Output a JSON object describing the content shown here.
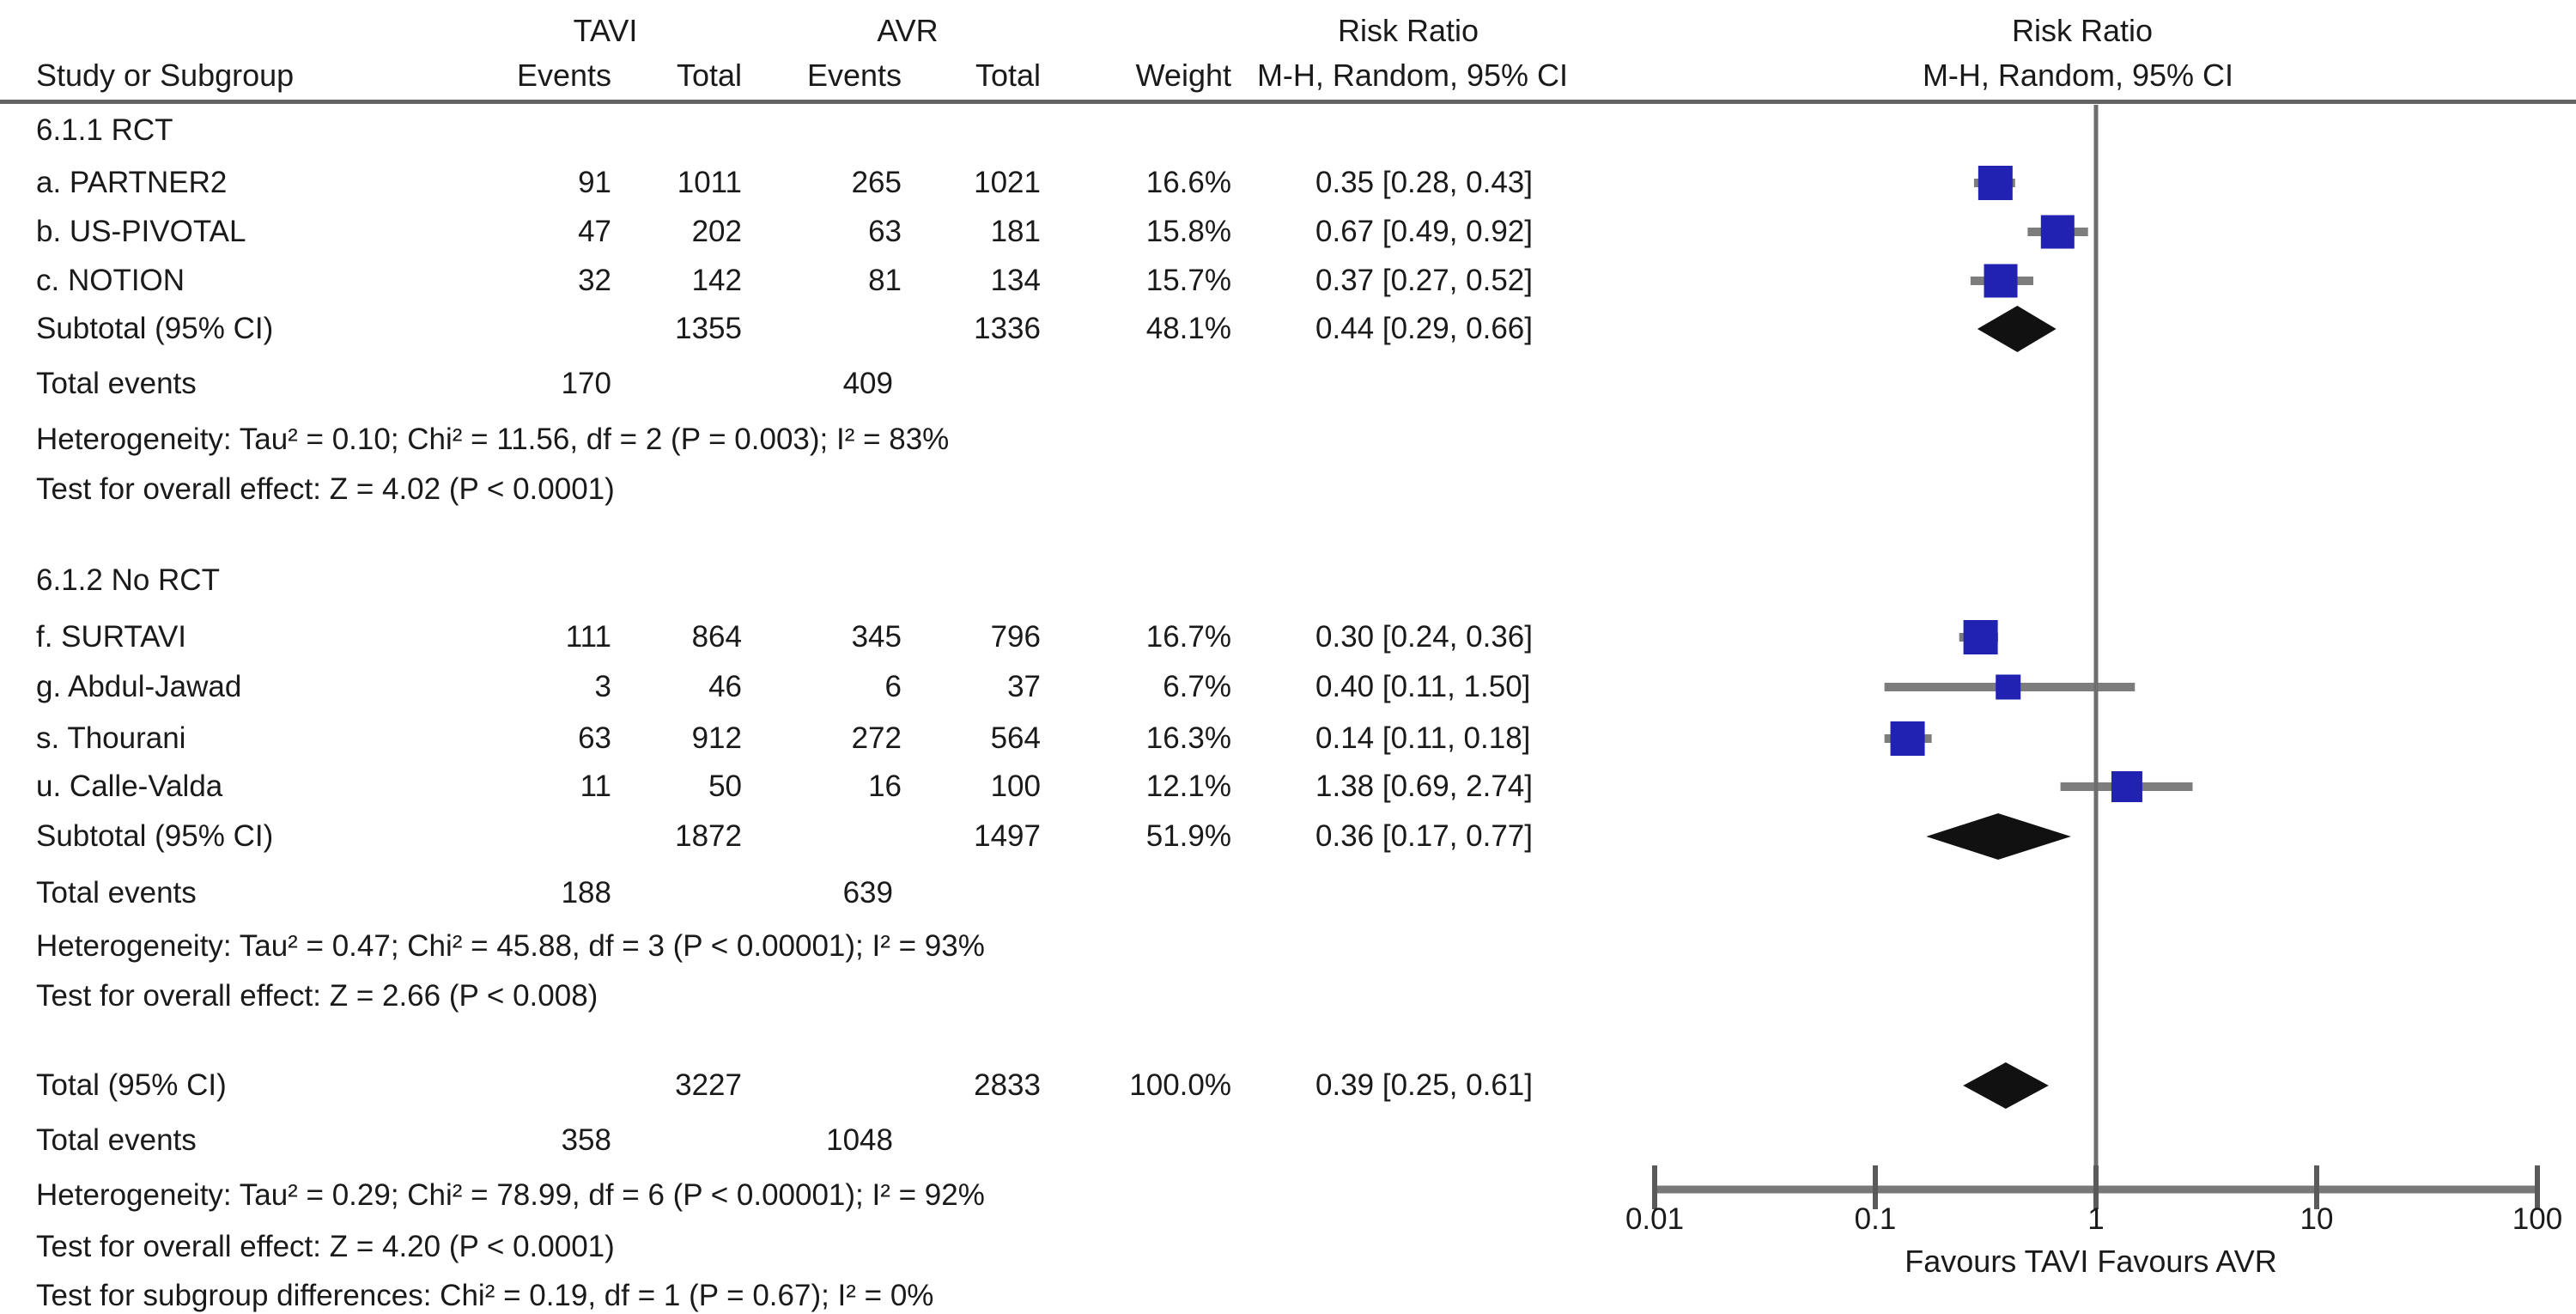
{
  "chart_data": {
    "type": "forest",
    "effect_measure": "Risk Ratio",
    "method": "M-H, Random, 95% CI",
    "group1": "TAVI",
    "group2": "AVR",
    "headers": {
      "study": "Study or Subgroup",
      "events": "Events",
      "total": "Total",
      "weight": "Weight"
    },
    "marker_colors": {
      "square": "#2222b2",
      "ci_line": "#7d7d7d",
      "diamond": "#111111",
      "axis": "#787878"
    },
    "subgroups": [
      {
        "name": "6.1.1 RCT",
        "studies": [
          {
            "label": "a. PARTNER2",
            "tavi_events": "91",
            "tavi_total": "1011",
            "avr_events": "265",
            "avr_total": "1021",
            "weight": "16.6%",
            "rr_text": "0.35 [0.28, 0.43]",
            "rr": 0.35,
            "ci_low": 0.28,
            "ci_high": 0.43
          },
          {
            "label": "b. US-PIVOTAL",
            "tavi_events": "47",
            "tavi_total": "202",
            "avr_events": "63",
            "avr_total": "181",
            "weight": "15.8%",
            "rr_text": "0.67 [0.49, 0.92]",
            "rr": 0.67,
            "ci_low": 0.49,
            "ci_high": 0.92
          },
          {
            "label": "c. NOTION",
            "tavi_events": "32",
            "tavi_total": "142",
            "avr_events": "81",
            "avr_total": "134",
            "weight": "15.7%",
            "rr_text": "0.37 [0.27, 0.52]",
            "rr": 0.37,
            "ci_low": 0.27,
            "ci_high": 0.52
          }
        ],
        "subtotal": {
          "label": "Subtotal (95% CI)",
          "tavi_total": "1355",
          "avr_total": "1336",
          "weight": "48.1%",
          "rr_text": "0.44 [0.29, 0.66]",
          "rr": 0.44,
          "ci_low": 0.29,
          "ci_high": 0.66
        },
        "total_events": {
          "label": "Total events",
          "tavi": "170",
          "avr": "409"
        },
        "heterogeneity": "Heterogeneity: Tau² = 0.10; Chi² = 11.56, df = 2 (P = 0.003); I² =  83%",
        "overall_effect": "Test for overall effect: Z = 4.02 (P < 0.0001)"
      },
      {
        "name": "6.1.2 No RCT",
        "studies": [
          {
            "label": "f. SURTAVI",
            "tavi_events": "111",
            "tavi_total": "864",
            "avr_events": "345",
            "avr_total": "796",
            "weight": "16.7%",
            "rr_text": "0.30 [0.24, 0.36]",
            "rr": 0.3,
            "ci_low": 0.24,
            "ci_high": 0.36
          },
          {
            "label": "g. Abdul-Jawad",
            "tavi_events": "3",
            "tavi_total": "46",
            "avr_events": "6",
            "avr_total": "37",
            "weight": "6.7%",
            "rr_text": "0.40 [0.11, 1.50]",
            "rr": 0.4,
            "ci_low": 0.11,
            "ci_high": 1.5
          },
          {
            "label": "s. Thourani",
            "tavi_events": "63",
            "tavi_total": "912",
            "avr_events": "272",
            "avr_total": "564",
            "weight": "16.3%",
            "rr_text": "0.14 [0.11, 0.18]",
            "rr": 0.14,
            "ci_low": 0.11,
            "ci_high": 0.18
          },
          {
            "label": "u. Calle-Valda",
            "tavi_events": "11",
            "tavi_total": "50",
            "avr_events": "16",
            "avr_total": "100",
            "weight": "12.1%",
            "rr_text": "1.38 [0.69, 2.74]",
            "rr": 1.38,
            "ci_low": 0.69,
            "ci_high": 2.74
          }
        ],
        "subtotal": {
          "label": "Subtotal (95% CI)",
          "tavi_total": "1872",
          "avr_total": "1497",
          "weight": "51.9%",
          "rr_text": "0.36 [0.17, 0.77]",
          "rr": 0.36,
          "ci_low": 0.17,
          "ci_high": 0.77
        },
        "total_events": {
          "label": "Total events",
          "tavi": "188",
          "avr": "639"
        },
        "heterogeneity": "Heterogeneity: Tau² = 0.47; Chi² = 45.88, df = 3 (P < 0.00001);  I² =  93%",
        "overall_effect": "Test for overall effect: Z = 2.66 (P < 0.008)"
      }
    ],
    "total": {
      "row": {
        "label": "Total (95% CI)",
        "tavi_total": "3227",
        "avr_total": "2833",
        "weight": "100.0%",
        "rr_text": "0.39 [0.25, 0.61]",
        "rr": 0.39,
        "ci_low": 0.25,
        "ci_high": 0.61
      },
      "total_events": {
        "label": "Total events",
        "tavi": "358",
        "avr": "1048"
      },
      "heterogeneity": "Heterogeneity: Tau² = 0.29; Chi² = 78.99, df = 6 (P < 0.00001);  I² =  92%",
      "overall_effect": "Test for overall effect: Z = 4.20 (P < 0.0001)",
      "subgroup_differences": "Test for subgroup differences: Chi² = 0.19, df = 1 (P = 0.67);  I² =  0%"
    },
    "x_axis": {
      "scale": "log",
      "ticks": [
        0.01,
        0.1,
        1,
        10,
        100
      ],
      "tick_labels": [
        "0.01",
        "0.1",
        "1",
        "10",
        "100"
      ],
      "favours_label": "Favours TAVI Favours AVR"
    }
  }
}
